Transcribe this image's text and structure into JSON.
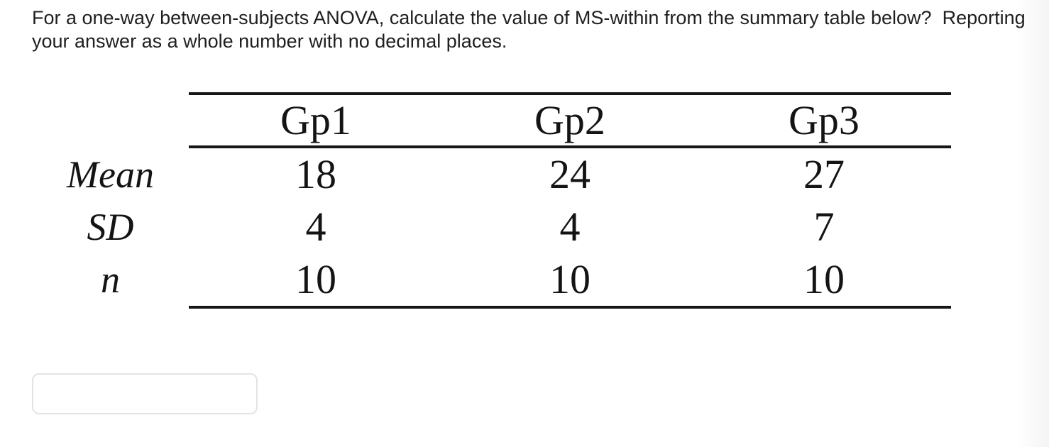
{
  "question": {
    "line1": "For a one-way between-subjects ANOVA, calculate the value of MS-within from the summary table below?  Reporting",
    "line2": "your answer as a whole number with no decimal places."
  },
  "table": {
    "columns": [
      "Gp1",
      "Gp2",
      "Gp3"
    ],
    "rows": [
      {
        "label": "Mean",
        "values": [
          "18",
          "24",
          "27"
        ]
      },
      {
        "label": "SD",
        "values": [
          "4",
          "4",
          "7"
        ]
      },
      {
        "label": "n",
        "values": [
          "10",
          "10",
          "10"
        ]
      }
    ]
  },
  "answer_input": {
    "value": "",
    "placeholder": ""
  },
  "colors": {
    "background": "#ffffff",
    "question_text": "#1f1f1f",
    "table_text": "#141414",
    "table_rule": "#161616",
    "input_border": "#e3e3e3"
  }
}
